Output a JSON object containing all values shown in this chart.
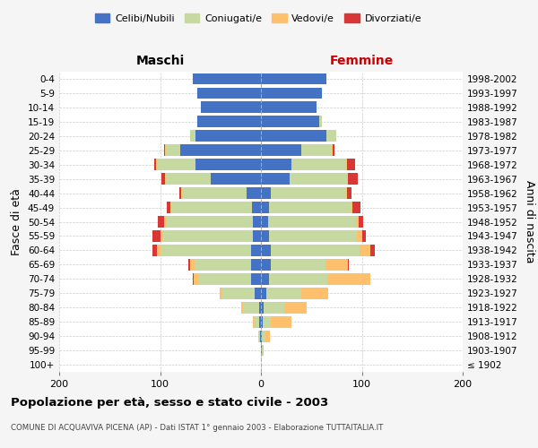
{
  "age_groups": [
    "100+",
    "95-99",
    "90-94",
    "85-89",
    "80-84",
    "75-79",
    "70-74",
    "65-69",
    "60-64",
    "55-59",
    "50-54",
    "45-49",
    "40-44",
    "35-39",
    "30-34",
    "25-29",
    "20-24",
    "15-19",
    "10-14",
    "5-9",
    "0-4"
  ],
  "birth_years": [
    "≤ 1902",
    "1903-1907",
    "1908-1912",
    "1913-1917",
    "1918-1922",
    "1923-1927",
    "1928-1932",
    "1933-1937",
    "1938-1942",
    "1943-1947",
    "1948-1952",
    "1953-1957",
    "1958-1962",
    "1963-1967",
    "1968-1972",
    "1973-1977",
    "1978-1982",
    "1983-1987",
    "1988-1992",
    "1993-1997",
    "1998-2002"
  ],
  "maschi_celibi": [
    0,
    0,
    1,
    2,
    2,
    6,
    10,
    10,
    10,
    8,
    8,
    9,
    14,
    50,
    65,
    80,
    65,
    63,
    60,
    63,
    68
  ],
  "maschi_coniugati": [
    0,
    0,
    2,
    5,
    16,
    32,
    52,
    56,
    90,
    90,
    86,
    80,
    64,
    44,
    38,
    14,
    5,
    0,
    0,
    0,
    0
  ],
  "maschi_vedovi": [
    0,
    0,
    0,
    1,
    2,
    3,
    5,
    4,
    3,
    2,
    2,
    1,
    1,
    1,
    1,
    1,
    0,
    0,
    0,
    0,
    0
  ],
  "maschi_divorziati": [
    0,
    0,
    0,
    0,
    0,
    0,
    1,
    2,
    5,
    8,
    6,
    3,
    2,
    4,
    2,
    1,
    0,
    0,
    0,
    0,
    0
  ],
  "femmine_nubili": [
    0,
    1,
    1,
    2,
    3,
    5,
    8,
    10,
    10,
    8,
    7,
    8,
    10,
    28,
    30,
    40,
    65,
    58,
    55,
    60,
    65
  ],
  "femmine_coniugate": [
    0,
    1,
    3,
    8,
    20,
    35,
    58,
    54,
    88,
    87,
    87,
    82,
    74,
    57,
    54,
    30,
    10,
    2,
    0,
    0,
    0
  ],
  "femmine_vedove": [
    0,
    1,
    5,
    20,
    22,
    27,
    42,
    22,
    10,
    5,
    3,
    1,
    1,
    1,
    1,
    1,
    0,
    0,
    0,
    0,
    0
  ],
  "femmine_divorziate": [
    0,
    0,
    0,
    0,
    0,
    0,
    0,
    1,
    5,
    4,
    4,
    8,
    5,
    10,
    8,
    2,
    0,
    0,
    0,
    0,
    0
  ],
  "colors": {
    "celibi_nubili": "#4472c4",
    "coniugati": "#c5d9a0",
    "vedovi": "#ffc06e",
    "divorziati": "#d93636"
  },
  "xlim": 200,
  "title": "Popolazione per età, sesso e stato civile - 2003",
  "subtitle": "COMUNE DI ACQUAVIVA PICENA (AP) - Dati ISTAT 1° gennaio 2003 - Elaborazione TUTTAITALIA.IT",
  "ylabel_left": "Fasce di età",
  "ylabel_right": "Anni di nascita",
  "xlabel_maschi": "Maschi",
  "xlabel_femmine": "Femmine",
  "background_color": "#f5f5f5",
  "plot_bg_color": "#ffffff",
  "legend_labels": [
    "Celibi/Nubili",
    "Coniugati/e",
    "Vedovi/e",
    "Divorziati/e"
  ]
}
